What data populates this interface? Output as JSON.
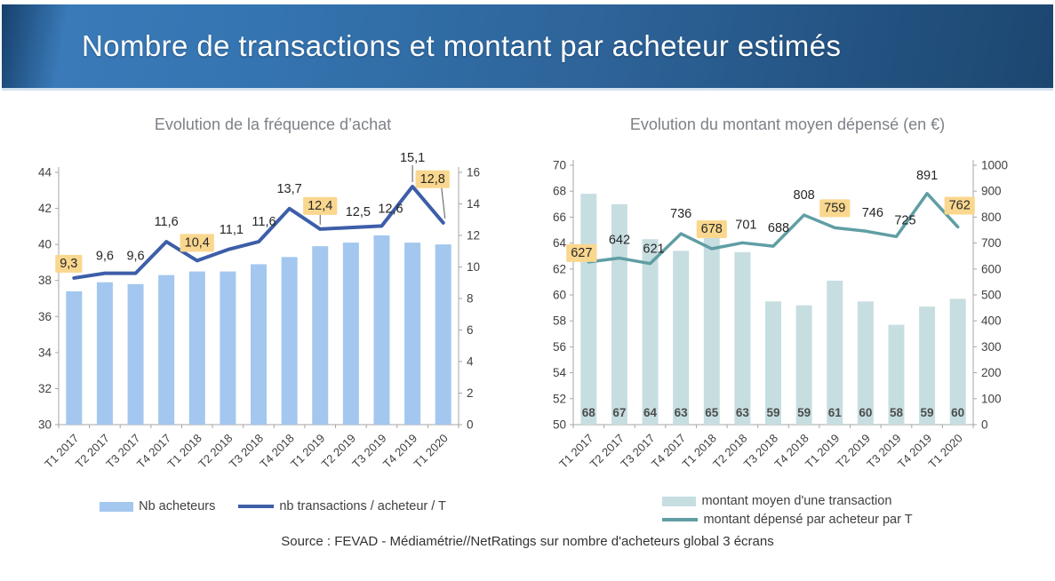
{
  "header": {
    "title": "Nombre de transactions et montant par acheteur estimés"
  },
  "footer": {
    "source": "Source : FEVAD - Médiamétrie//NetRatings sur nombre d'acheteurs global 3 écrans"
  },
  "chart_data": [
    {
      "id": "frequence-achat",
      "type": "bar+line",
      "title": "Evolution de la fréquence d’achat",
      "categories": [
        "T1 2017",
        "T2 2017",
        "T3 2017",
        "T4 2017",
        "T1 2018",
        "T2 2018",
        "T3 2018",
        "T4 2018",
        "T1 2019",
        "T2 2019",
        "T3 2019",
        "T4 2019",
        "T1 2020"
      ],
      "left_axis": {
        "min": 30,
        "max": 44,
        "step": 2
      },
      "right_axis": {
        "min": 0,
        "max": 16,
        "step": 2
      },
      "highlight_color": "#FAD78E",
      "legend_position": "bottom",
      "series": [
        {
          "name": "Nb acheteurs",
          "type": "bar",
          "axis": "left",
          "color": "#A3C7EF",
          "values": [
            37.4,
            37.9,
            37.8,
            38.3,
            38.5,
            38.5,
            38.9,
            39.3,
            39.9,
            40.1,
            40.5,
            40.1,
            40.0
          ]
        },
        {
          "name": "nb transactions / acheteur / T",
          "type": "line",
          "axis": "right",
          "color": "#3D5EA8",
          "values": [
            9.3,
            9.6,
            9.6,
            11.6,
            10.4,
            11.1,
            11.6,
            13.7,
            12.4,
            12.5,
            12.6,
            15.1,
            12.8
          ],
          "labels": [
            "9,3",
            "9,6",
            "9,6",
            "11,6",
            "10,4",
            "11,1",
            "11,6",
            "13,7",
            "12,4",
            "12,5",
            "12,6",
            "15,1",
            "12,8"
          ],
          "highlighted": [
            0,
            4,
            8,
            12
          ]
        }
      ]
    },
    {
      "id": "montant-moyen",
      "type": "bar+line",
      "title": "Evolution du montant moyen dépensé (en €)",
      "categories": [
        "T1 2017",
        "T2 2017",
        "T3 2017",
        "T4 2017",
        "T1 2018",
        "T2 2018",
        "T3 2018",
        "T4 2018",
        "T1 2019",
        "T2 2019",
        "T3 2019",
        "T4 2019",
        "T1 2020"
      ],
      "left_axis": {
        "min": 50,
        "max": 70,
        "step": 2
      },
      "right_axis": {
        "min": 0,
        "max": 1000,
        "step": 100
      },
      "highlight_color": "#FAD78E",
      "legend_position": "bottom",
      "series": [
        {
          "name": "montant moyen d'une transaction",
          "type": "bar",
          "axis": "left",
          "color": "#C7DEE1",
          "values": [
            67.8,
            67.0,
            64.3,
            63.4,
            64.6,
            63.3,
            59.5,
            59.2,
            61.1,
            59.5,
            57.7,
            59.1,
            59.7
          ],
          "value_labels": [
            "68",
            "67",
            "64",
            "63",
            "65",
            "63",
            "59",
            "59",
            "61",
            "60",
            "58",
            "59",
            "60"
          ]
        },
        {
          "name": "montant dépensé par acheteur par T",
          "type": "line",
          "axis": "right",
          "color": "#5F9EA4",
          "values": [
            627,
            642,
            621,
            736,
            678,
            701,
            688,
            808,
            759,
            746,
            725,
            891,
            762
          ],
          "labels": [
            "627",
            "642",
            "621",
            "736",
            "678",
            "701",
            "688",
            "808",
            "759",
            "746",
            "725",
            "891",
            "762"
          ],
          "highlighted": [
            0,
            4,
            8,
            12
          ]
        }
      ]
    }
  ]
}
